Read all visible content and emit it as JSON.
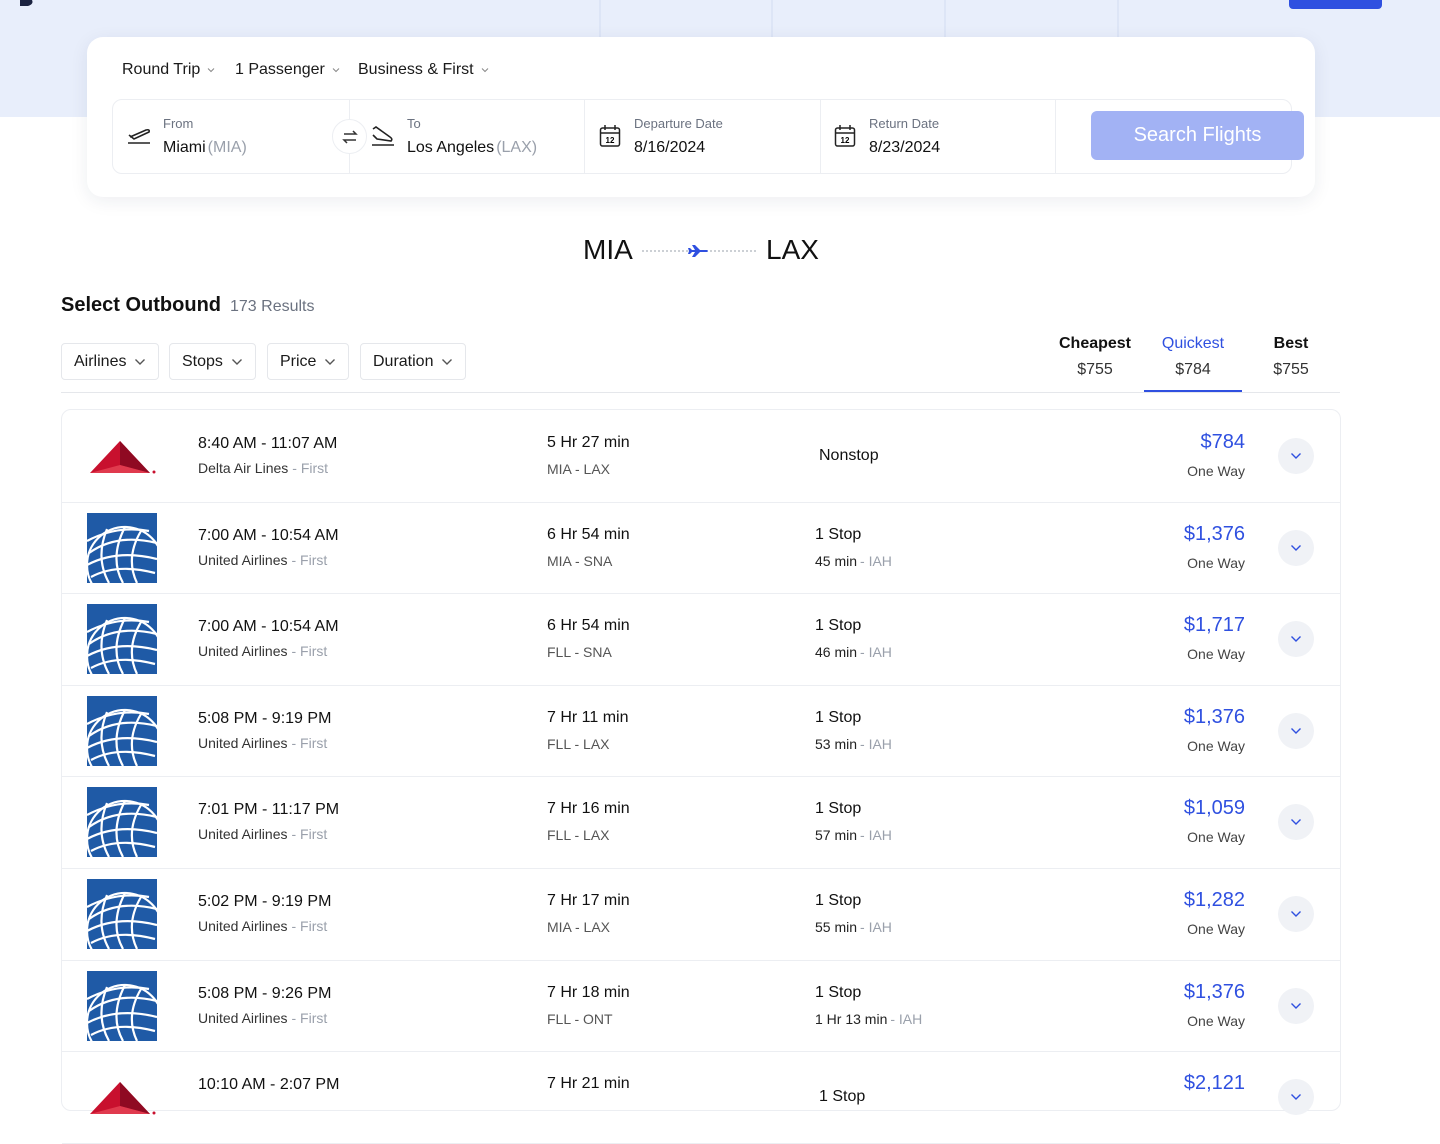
{
  "search": {
    "trip_type": "Round Trip",
    "passengers": "1 Passenger",
    "cabin": "Business & First",
    "from_label": "From",
    "from_city": "Miami",
    "from_code": "(MIA)",
    "to_label": "To",
    "to_city": "Los Angeles",
    "to_code": "(LAX)",
    "departure_label": "Departure Date",
    "departure_date": "8/16/2024",
    "return_label": "Return Date",
    "return_date": "8/23/2024",
    "calendar_day": "12",
    "button": "Search Flights"
  },
  "route": {
    "origin": "MIA",
    "destination": "LAX"
  },
  "results": {
    "title": "Select Outbound",
    "count": "173 Results"
  },
  "filters": [
    "Airlines",
    "Stops",
    "Price",
    "Duration"
  ],
  "sort_tabs": [
    {
      "label": "Cheapest",
      "price": "$755",
      "active": false
    },
    {
      "label": "Quickest",
      "price": "$784",
      "active": true
    },
    {
      "label": "Best",
      "price": "$755",
      "active": false
    }
  ],
  "flights": [
    {
      "logo": "delta",
      "time": "8:40 AM - 11:07 AM",
      "airline": "Delta Air Lines",
      "cabin": "- First",
      "duration": "5 Hr 27 min",
      "airports": "MIA - LAX",
      "stops": "Nonstop",
      "price": "$784",
      "fare": "One Way"
    },
    {
      "logo": "united",
      "time": "7:00 AM - 10:54 AM",
      "airline": "United Airlines",
      "cabin": "- First",
      "duration": "6 Hr 54 min",
      "airports": "MIA - SNA",
      "stops": "1 Stop",
      "layover": "45 min",
      "layover_airport": "- IAH",
      "price": "$1,376",
      "fare": "One Way"
    },
    {
      "logo": "united",
      "time": "7:00 AM - 10:54 AM",
      "airline": "United Airlines",
      "cabin": "- First",
      "duration": "6 Hr 54 min",
      "airports": "FLL - SNA",
      "stops": "1 Stop",
      "layover": "46 min",
      "layover_airport": "- IAH",
      "price": "$1,717",
      "fare": "One Way"
    },
    {
      "logo": "united",
      "time": "5:08 PM - 9:19 PM",
      "airline": "United Airlines",
      "cabin": "- First",
      "duration": "7 Hr 11 min",
      "airports": "FLL - LAX",
      "stops": "1 Stop",
      "layover": "53 min",
      "layover_airport": "- IAH",
      "price": "$1,376",
      "fare": "One Way"
    },
    {
      "logo": "united",
      "time": "7:01 PM - 11:17 PM",
      "airline": "United Airlines",
      "cabin": "- First",
      "duration": "7 Hr 16 min",
      "airports": "FLL - LAX",
      "stops": "1 Stop",
      "layover": "57 min",
      "layover_airport": "- IAH",
      "price": "$1,059",
      "fare": "One Way"
    },
    {
      "logo": "united",
      "time": "5:02 PM - 9:19 PM",
      "airline": "United Airlines",
      "cabin": "- First",
      "duration": "7 Hr 17 min",
      "airports": "MIA - LAX",
      "stops": "1 Stop",
      "layover": "55 min",
      "layover_airport": "- IAH",
      "price": "$1,282",
      "fare": "One Way"
    },
    {
      "logo": "united",
      "time": "5:08 PM - 9:26 PM",
      "airline": "United Airlines",
      "cabin": "- First",
      "duration": "7 Hr 18 min",
      "airports": "FLL - ONT",
      "stops": "1 Stop",
      "layover": "1 Hr 13 min",
      "layover_airport": "- IAH",
      "price": "$1,376",
      "fare": "One Way"
    },
    {
      "logo": "delta",
      "time": "10:10 AM - 2:07 PM",
      "duration": "7 Hr 21 min",
      "stops": "1 Stop",
      "price": "$2,121"
    }
  ]
}
